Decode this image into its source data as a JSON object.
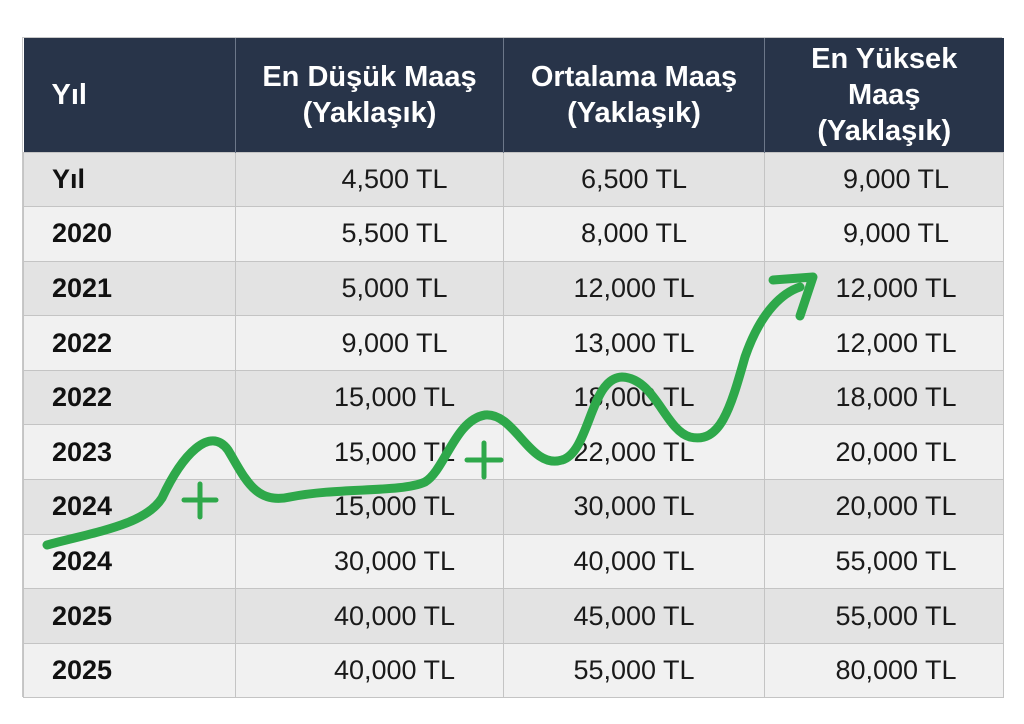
{
  "header": {
    "year": "Yıl",
    "min_line1": "En Düşük Maaş",
    "min_line2": "(Yaklaşık)",
    "avg_line1": "Ortalama Maaş",
    "avg_line2": "(Yaklaşık)",
    "max_line1": "En Yüksek Maaş",
    "max_line2": "(Yaklaşık)"
  },
  "rows": [
    {
      "year": "Yıl",
      "min": "4,500 TL",
      "avg": "6,500 TL",
      "max": "9,000 TL"
    },
    {
      "year": "2020",
      "min": "5,500 TL",
      "avg": "8,000 TL",
      "max": "9,000 TL"
    },
    {
      "year": "2021",
      "min": "5,000 TL",
      "avg": "12,000 TL",
      "max": "12,000 TL"
    },
    {
      "year": "2022",
      "min": "9,000 TL",
      "avg": "13,000 TL",
      "max": "12,000 TL"
    },
    {
      "year": "2022",
      "min": "15,000 TL",
      "avg": "18,000 TL",
      "max": "18,000 TL"
    },
    {
      "year": "2023",
      "min": "15,000 TL",
      "avg": "22,000 TL",
      "max": "20,000 TL"
    },
    {
      "year": "2024",
      "min": "15,000 TL",
      "avg": "30,000 TL",
      "max": "20,000 TL"
    },
    {
      "year": "2024",
      "min": "30,000 TL",
      "avg": "40,000 TL",
      "max": "55,000 TL"
    },
    {
      "year": "2025",
      "min": "40,000 TL",
      "avg": "45,000 TL",
      "max": "55,000 TL"
    },
    {
      "year": "2025",
      "min": "40,000 TL",
      "avg": "55,000 TL",
      "max": "80,000 TL"
    }
  ],
  "decoration": {
    "arrow_color": "#2ea84a",
    "header_color": "#283449",
    "icons": [
      "trend-arrow-icon",
      "plus-icon",
      "plus-icon"
    ]
  }
}
